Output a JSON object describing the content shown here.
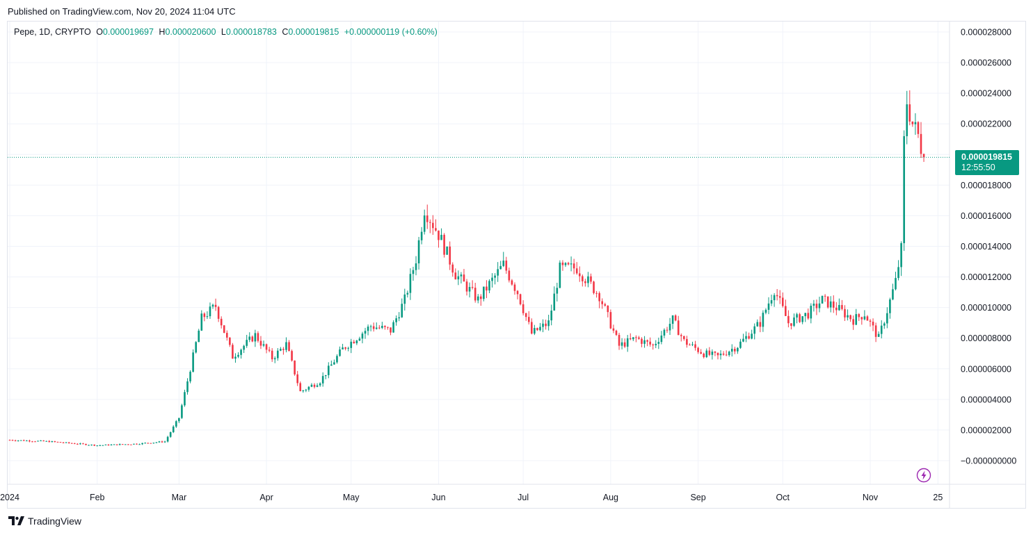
{
  "header": {
    "published": "Published on TradingView.com, Nov 20, 2024 11:04 UTC"
  },
  "legend": {
    "symbol": "Pepe, 1D, CRYPTO",
    "o_label": "O",
    "o_value": "0.000019697",
    "h_label": "H",
    "h_value": "0.000020600",
    "l_label": "L",
    "l_value": "0.000018783",
    "c_label": "C",
    "c_value": "0.000019815",
    "change": "+0.000000119 (+0.60%)"
  },
  "price_tag": {
    "price": "0.000019815",
    "countdown": "12:55:50"
  },
  "footer": {
    "brand": "TradingView",
    "logo_icon": "tradingview-logo-icon"
  },
  "colors": {
    "up": "#089981",
    "down": "#F23645",
    "grid": "#F0F3FA",
    "text": "#131722",
    "accent": "#9C27B0"
  },
  "chart_data": {
    "type": "candlestick",
    "symbol": "Pepe",
    "interval": "1D",
    "y_axis": {
      "ylim": [
        -5e-07,
        2.91e-05
      ],
      "ticks": [
        "0.000028000",
        "0.000026000",
        "0.000024000",
        "0.000022000",
        "0.000020000",
        "0.000018000",
        "0.000016000",
        "0.000014000",
        "0.000012000",
        "0.000010000",
        "0.000008000",
        "0.000006000",
        "0.000004000",
        "0.000002000",
        "−0.000000000"
      ],
      "tick_values": [
        2.8e-05,
        2.6e-05,
        2.4e-05,
        2.2e-05,
        2e-05,
        1.8e-05,
        1.6e-05,
        1.4e-05,
        1.2e-05,
        1e-05,
        8e-06,
        6e-06,
        4e-06,
        2e-06,
        0
      ]
    },
    "x_axis": {
      "labels": [
        "2024",
        "Feb",
        "Mar",
        "Apr",
        "May",
        "Jun",
        "Jul",
        "Aug",
        "Sep",
        "Oct",
        "Nov",
        "25"
      ],
      "label_dates": [
        "2024-01-01",
        "2024-02-01",
        "2024-03-01",
        "2024-04-01",
        "2024-05-01",
        "2024-06-01",
        "2024-07-01",
        "2024-08-01",
        "2024-09-01",
        "2024-10-01",
        "2024-11-01",
        "2024-11-25"
      ]
    },
    "grid": true,
    "last_price": 1.9815e-05,
    "close_path": [
      [
        "2024-01-01",
        1.35e-06
      ],
      [
        "2024-01-15",
        1.25e-06
      ],
      [
        "2024-02-01",
        1e-06
      ],
      [
        "2024-02-15",
        1.1e-06
      ],
      [
        "2024-02-25",
        1.25e-06
      ],
      [
        "2024-03-01",
        2.8e-06
      ],
      [
        "2024-03-05",
        6e-06
      ],
      [
        "2024-03-09",
        9.3e-06
      ],
      [
        "2024-03-14",
        1.01e-05
      ],
      [
        "2024-03-20",
        6.8e-06
      ],
      [
        "2024-03-28",
        8.2e-06
      ],
      [
        "2024-04-03",
        6.7e-06
      ],
      [
        "2024-04-08",
        7.6e-06
      ],
      [
        "2024-04-13",
        4.5e-06
      ],
      [
        "2024-04-20",
        5.2e-06
      ],
      [
        "2024-04-28",
        7.3e-06
      ],
      [
        "2024-05-08",
        8.8e-06
      ],
      [
        "2024-05-15",
        8.5e-06
      ],
      [
        "2024-05-20",
        1.05e-05
      ],
      [
        "2024-05-24",
        1.32e-05
      ],
      [
        "2024-05-27",
        1.65e-05
      ],
      [
        "2024-06-01",
        1.48e-05
      ],
      [
        "2024-06-07",
        1.22e-05
      ],
      [
        "2024-06-15",
        1.05e-05
      ],
      [
        "2024-06-24",
        1.28e-05
      ],
      [
        "2024-06-29",
        1.1e-05
      ],
      [
        "2024-07-04",
        8.3e-06
      ],
      [
        "2024-07-10",
        9e-06
      ],
      [
        "2024-07-14",
        1.25e-05
      ],
      [
        "2024-07-20",
        1.26e-05
      ],
      [
        "2024-07-28",
        1.08e-05
      ],
      [
        "2024-08-04",
        7.5e-06
      ],
      [
        "2024-08-10",
        8e-06
      ],
      [
        "2024-08-16",
        7.5e-06
      ],
      [
        "2024-08-23",
        9.2e-06
      ],
      [
        "2024-08-27",
        7.8e-06
      ],
      [
        "2024-09-03",
        7e-06
      ],
      [
        "2024-09-08",
        6.8e-06
      ],
      [
        "2024-09-15",
        7.5e-06
      ],
      [
        "2024-09-23",
        9e-06
      ],
      [
        "2024-09-28",
        1.12e-05
      ],
      [
        "2024-10-03",
        9e-06
      ],
      [
        "2024-10-10",
        9.6e-06
      ],
      [
        "2024-10-15",
        1.05e-05
      ],
      [
        "2024-10-20",
        1e-05
      ],
      [
        "2024-10-26",
        9.2e-06
      ],
      [
        "2024-10-30",
        9.6e-06
      ],
      [
        "2024-11-04",
        8e-06
      ],
      [
        "2024-11-07",
        9.8e-06
      ],
      [
        "2024-11-10",
        1.17e-05
      ],
      [
        "2024-11-12",
        1.38e-05
      ],
      [
        "2024-11-13",
        2.08e-05
      ],
      [
        "2024-11-14",
        2.35e-05
      ],
      [
        "2024-11-16",
        2.2e-05
      ],
      [
        "2024-11-18",
        2.12e-05
      ],
      [
        "2024-11-20",
        1.9815e-05
      ]
    ]
  }
}
